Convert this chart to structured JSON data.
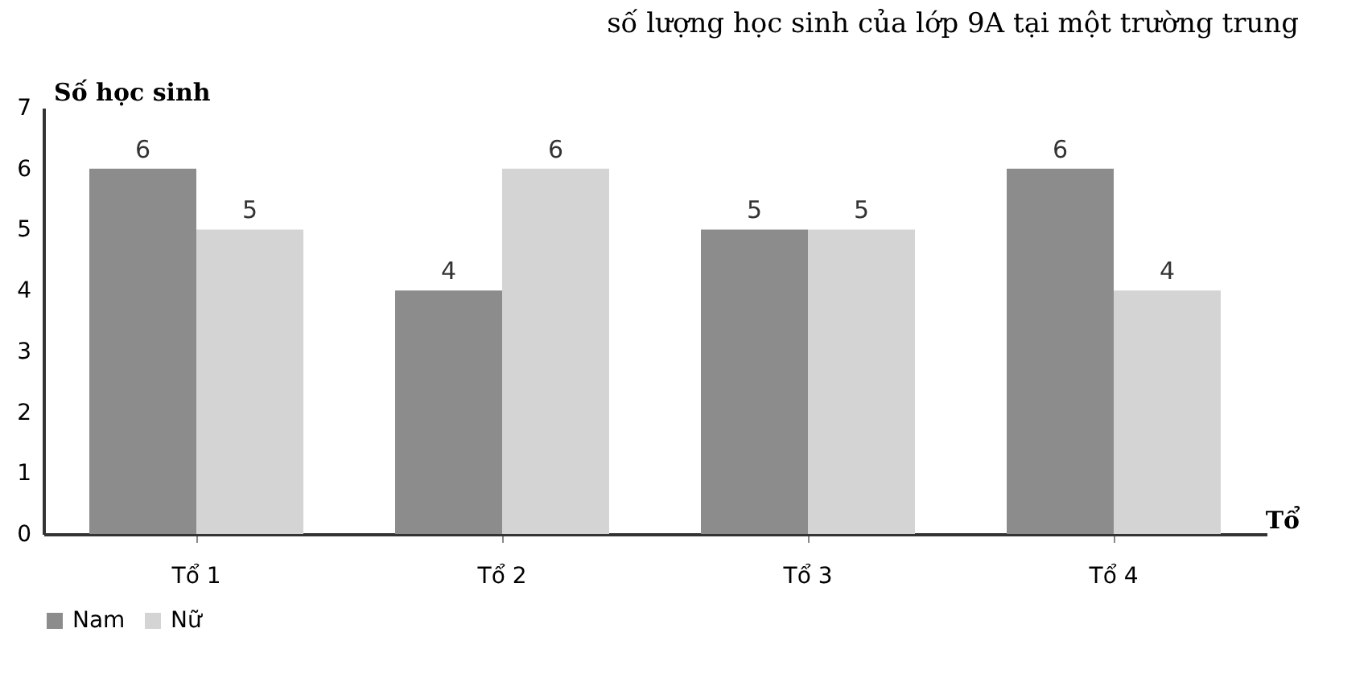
{
  "chart_data": {
    "type": "bar",
    "title": "số lượng học sinh của lớp 9A tại một trường trung",
    "xlabel": "Tổ",
    "ylabel": "Số học sinh",
    "categories": [
      "Tổ 1",
      "Tổ 2",
      "Tổ 3",
      "Tổ 4"
    ],
    "series": [
      {
        "name": "Nam",
        "color": "#8c8c8c",
        "values": [
          6,
          4,
          5,
          6
        ]
      },
      {
        "name": "Nữ",
        "color": "#d4d4d4",
        "values": [
          5,
          6,
          5,
          4
        ]
      }
    ],
    "ylim": [
      0,
      7
    ],
    "yticks": [
      0,
      1,
      2,
      3,
      4,
      5,
      6,
      7
    ],
    "grid": false,
    "legend": "bottom",
    "data_labels": true
  }
}
